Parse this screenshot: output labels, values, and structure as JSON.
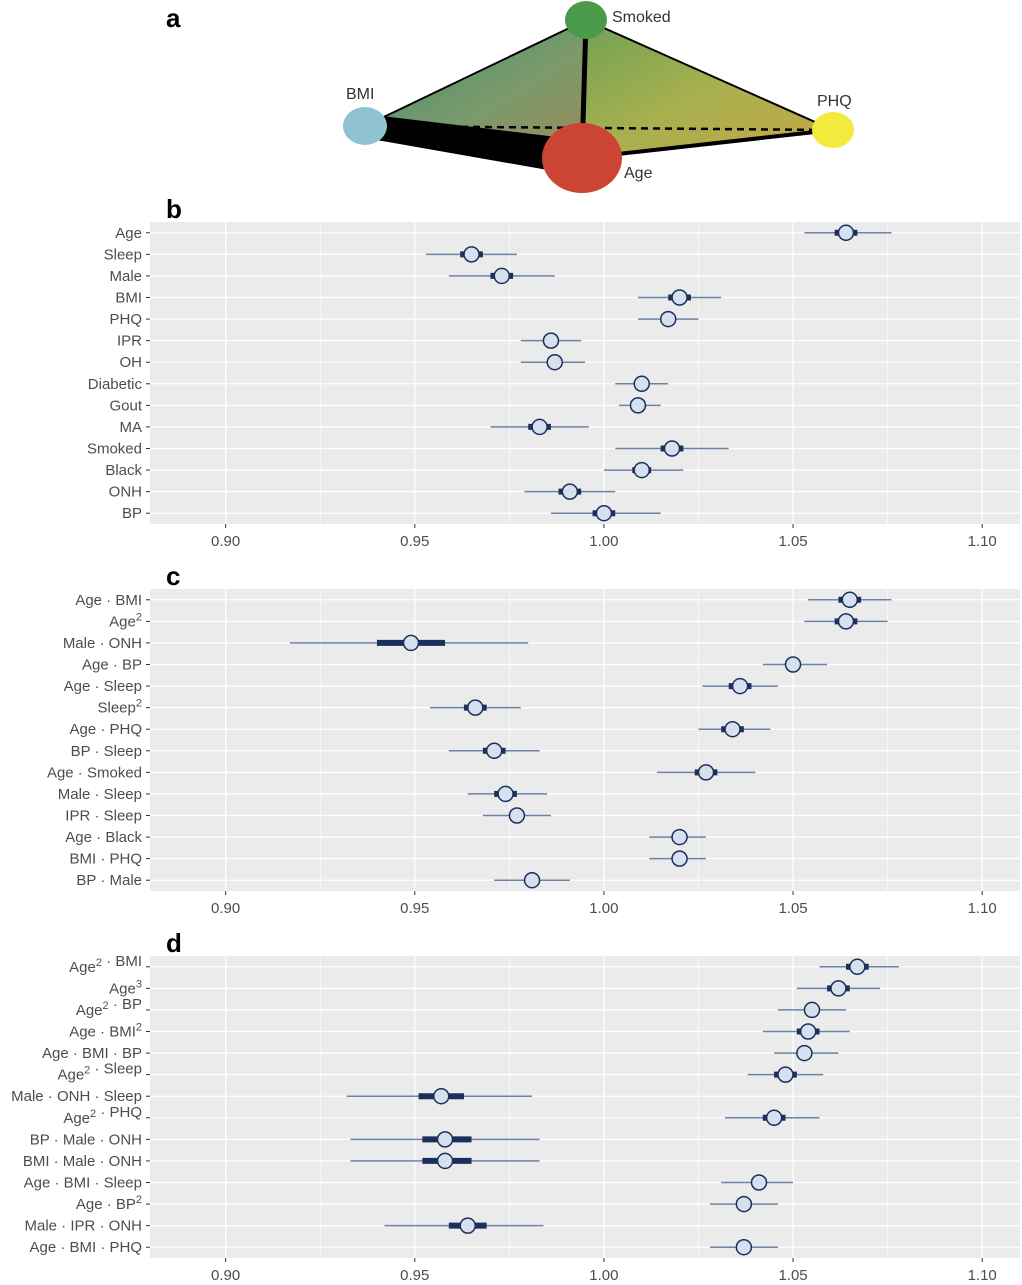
{
  "panel_a": {
    "letter": "a",
    "nodes": [
      {
        "id": "smoked",
        "label": "Smoked",
        "color": "#4a9a4a"
      },
      {
        "id": "bmi",
        "label": "BMI",
        "color": "#8fc3cf"
      },
      {
        "id": "phq",
        "label": "PHQ",
        "color": "#f2ea3d"
      },
      {
        "id": "age",
        "label": "Age",
        "color": "#cc4433"
      }
    ]
  },
  "chart_data": [
    {
      "type": "forest",
      "panel": "b",
      "xlim": [
        0.88,
        1.11
      ],
      "xticks": [
        "0.90",
        "0.95",
        "1.00",
        "1.05",
        "1.10"
      ],
      "xtick_values": [
        0.9,
        0.95,
        1.0,
        1.05,
        1.1
      ],
      "grid": true,
      "rows": [
        {
          "label": "Age",
          "est": 1.064,
          "inner": [
            1.061,
            1.067
          ],
          "outer": [
            1.053,
            1.076
          ]
        },
        {
          "label": "Sleep",
          "est": 0.965,
          "inner": [
            0.962,
            0.968
          ],
          "outer": [
            0.953,
            0.977
          ]
        },
        {
          "label": "Male",
          "est": 0.973,
          "inner": [
            0.97,
            0.976
          ],
          "outer": [
            0.959,
            0.987
          ]
        },
        {
          "label": "BMI",
          "est": 1.02,
          "inner": [
            1.017,
            1.023
          ],
          "outer": [
            1.009,
            1.031
          ]
        },
        {
          "label": "PHQ",
          "est": 1.017,
          "inner": [
            1.0155,
            1.0185
          ],
          "outer": [
            1.009,
            1.025
          ]
        },
        {
          "label": "IPR",
          "est": 0.986,
          "inner": [
            0.9845,
            0.9875
          ],
          "outer": [
            0.978,
            0.994
          ]
        },
        {
          "label": "OH",
          "est": 0.987,
          "inner": [
            0.9855,
            0.9885
          ],
          "outer": [
            0.978,
            0.995
          ]
        },
        {
          "label": "Diabetic",
          "est": 1.01,
          "inner": [
            1.0085,
            1.0115
          ],
          "outer": [
            1.003,
            1.017
          ]
        },
        {
          "label": "Gout",
          "est": 1.009,
          "inner": [
            1.0075,
            1.0105
          ],
          "outer": [
            1.004,
            1.015
          ]
        },
        {
          "label": "MA",
          "est": 0.983,
          "inner": [
            0.98,
            0.986
          ],
          "outer": [
            0.97,
            0.996
          ]
        },
        {
          "label": "Smoked",
          "est": 1.018,
          "inner": [
            1.015,
            1.021
          ],
          "outer": [
            1.003,
            1.033
          ]
        },
        {
          "label": "Black",
          "est": 1.01,
          "inner": [
            1.0075,
            1.0125
          ],
          "outer": [
            1.0,
            1.021
          ]
        },
        {
          "label": "ONH",
          "est": 0.991,
          "inner": [
            0.988,
            0.994
          ],
          "outer": [
            0.979,
            1.003
          ]
        },
        {
          "label": "BP",
          "est": 1.0,
          "inner": [
            0.997,
            1.003
          ],
          "outer": [
            0.986,
            1.015
          ]
        }
      ]
    },
    {
      "type": "forest",
      "panel": "c",
      "xlim": [
        0.88,
        1.11
      ],
      "xticks": [
        "0.90",
        "0.95",
        "1.00",
        "1.05",
        "1.10"
      ],
      "xtick_values": [
        0.9,
        0.95,
        1.0,
        1.05,
        1.1
      ],
      "grid": true,
      "rows": [
        {
          "label": "Age · BMI",
          "est": 1.065,
          "inner": [
            1.062,
            1.068
          ],
          "outer": [
            1.054,
            1.076
          ]
        },
        {
          "label": "Age²",
          "est": 1.064,
          "inner": [
            1.061,
            1.067
          ],
          "outer": [
            1.053,
            1.075
          ]
        },
        {
          "label": "Male · ONH",
          "est": 0.949,
          "inner": [
            0.94,
            0.958
          ],
          "outer": [
            0.917,
            0.98
          ]
        },
        {
          "label": "Age · BP",
          "est": 1.05,
          "inner": [
            1.0485,
            1.0515
          ],
          "outer": [
            1.042,
            1.059
          ]
        },
        {
          "label": "Age · Sleep",
          "est": 1.036,
          "inner": [
            1.033,
            1.039
          ],
          "outer": [
            1.026,
            1.046
          ]
        },
        {
          "label": "Sleep²",
          "est": 0.966,
          "inner": [
            0.963,
            0.969
          ],
          "outer": [
            0.954,
            0.978
          ]
        },
        {
          "label": "Age · PHQ",
          "est": 1.034,
          "inner": [
            1.031,
            1.037
          ],
          "outer": [
            1.025,
            1.044
          ]
        },
        {
          "label": "BP · Sleep",
          "est": 0.971,
          "inner": [
            0.968,
            0.974
          ],
          "outer": [
            0.959,
            0.983
          ]
        },
        {
          "label": "Age · Smoked",
          "est": 1.027,
          "inner": [
            1.024,
            1.03
          ],
          "outer": [
            1.014,
            1.04
          ]
        },
        {
          "label": "Male · Sleep",
          "est": 0.974,
          "inner": [
            0.971,
            0.977
          ],
          "outer": [
            0.964,
            0.985
          ]
        },
        {
          "label": "IPR · Sleep",
          "est": 0.977,
          "inner": [
            0.975,
            0.979
          ],
          "outer": [
            0.968,
            0.986
          ]
        },
        {
          "label": "Age · Black",
          "est": 1.02,
          "inner": [
            1.0185,
            1.0215
          ],
          "outer": [
            1.012,
            1.027
          ]
        },
        {
          "label": "BMI · PHQ",
          "est": 1.02,
          "inner": [
            1.0185,
            1.0215
          ],
          "outer": [
            1.012,
            1.027
          ]
        },
        {
          "label": "BP · Male",
          "est": 0.981,
          "inner": [
            0.979,
            0.983
          ],
          "outer": [
            0.971,
            0.991
          ]
        }
      ]
    },
    {
      "type": "forest",
      "panel": "d",
      "xlim": [
        0.88,
        1.11
      ],
      "xticks": [
        "0.90",
        "0.95",
        "1.00",
        "1.05",
        "1.10"
      ],
      "xtick_values": [
        0.9,
        0.95,
        1.0,
        1.05,
        1.1
      ],
      "grid": true,
      "rows": [
        {
          "label": "Age² · BMI",
          "est": 1.067,
          "inner": [
            1.064,
            1.07
          ],
          "outer": [
            1.057,
            1.078
          ]
        },
        {
          "label": "Age³",
          "est": 1.062,
          "inner": [
            1.059,
            1.065
          ],
          "outer": [
            1.051,
            1.073
          ]
        },
        {
          "label": "Age² · BP",
          "est": 1.055,
          "inner": [
            1.053,
            1.057
          ],
          "outer": [
            1.046,
            1.064
          ]
        },
        {
          "label": "Age · BMI²",
          "est": 1.054,
          "inner": [
            1.051,
            1.057
          ],
          "outer": [
            1.042,
            1.065
          ]
        },
        {
          "label": "Age · BMI · BP",
          "est": 1.053,
          "inner": [
            1.051,
            1.055
          ],
          "outer": [
            1.045,
            1.062
          ]
        },
        {
          "label": "Age² · Sleep",
          "est": 1.048,
          "inner": [
            1.045,
            1.051
          ],
          "outer": [
            1.038,
            1.058
          ]
        },
        {
          "label": "Male · ONH · Sleep",
          "est": 0.957,
          "inner": [
            0.951,
            0.963
          ],
          "outer": [
            0.932,
            0.981
          ]
        },
        {
          "label": "Age² · PHQ",
          "est": 1.045,
          "inner": [
            1.042,
            1.048
          ],
          "outer": [
            1.032,
            1.057
          ]
        },
        {
          "label": "BP · Male · ONH",
          "est": 0.958,
          "inner": [
            0.952,
            0.965
          ],
          "outer": [
            0.933,
            0.983
          ]
        },
        {
          "label": "BMI · Male · ONH",
          "est": 0.958,
          "inner": [
            0.952,
            0.965
          ],
          "outer": [
            0.933,
            0.983
          ]
        },
        {
          "label": "Age · BMI · Sleep",
          "est": 1.041,
          "inner": [
            1.039,
            1.043
          ],
          "outer": [
            1.031,
            1.05
          ]
        },
        {
          "label": "Age · BP²",
          "est": 1.037,
          "inner": [
            1.035,
            1.039
          ],
          "outer": [
            1.028,
            1.046
          ]
        },
        {
          "label": "Male · IPR · ONH",
          "est": 0.964,
          "inner": [
            0.959,
            0.969
          ],
          "outer": [
            0.942,
            0.984
          ]
        },
        {
          "label": "Age · BMI · PHQ",
          "est": 1.037,
          "inner": [
            1.035,
            1.039
          ],
          "outer": [
            1.028,
            1.046
          ]
        }
      ]
    }
  ],
  "colors": {
    "panel_bg": "#ebebeb",
    "grid": "#ffffff",
    "outer_line": "#6d84a6",
    "inner_bar": "#1b2f5c",
    "point_fill": "#d6e1ef",
    "point_stroke": "#1b2f5c"
  }
}
